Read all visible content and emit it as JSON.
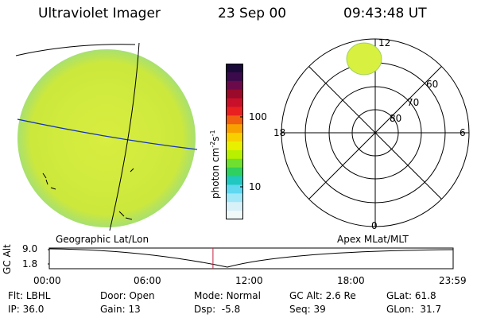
{
  "header": {
    "title": "Ultraviolet Imager",
    "date": "23 Sep 00",
    "time": "09:43:48 UT"
  },
  "colorbar": {
    "unit_label": "photon cm",
    "unit_exp1": "-2",
    "unit_s": "s",
    "unit_exp2": "-1",
    "ticks": [
      "100",
      "10"
    ],
    "colors": [
      "#1a0a3a",
      "#3a0a4a",
      "#6a0a4a",
      "#9a0a2a",
      "#c8102a",
      "#e82020",
      "#f06010",
      "#f8a000",
      "#f8d000",
      "#e8f000",
      "#b8f000",
      "#70e030",
      "#30d060",
      "#20c8c0",
      "#60d8f0",
      "#a0e8f8",
      "#d8f0f8",
      "#f0f8f8"
    ]
  },
  "polar": {
    "labels": [
      "12",
      "18",
      "6",
      "0",
      "60",
      "70",
      "80"
    ]
  },
  "timeline": {
    "left_axis_title": "GC Alt",
    "left_ticks": [
      "9.0",
      "1.8"
    ],
    "left_caption": "Geographic Lat/Lon",
    "right_caption": "Apex MLat/MLT",
    "time_ticks": [
      "00:00",
      "06:00",
      "12:00",
      "18:00",
      "23:59"
    ],
    "current_fraction": 0.4054
  },
  "footer": {
    "flt_label": "Flt:",
    "flt_value": "LBHL",
    "ip_label": "IP:",
    "ip_value": "36.0",
    "door_label": "Door:",
    "door_value": "Open",
    "gain_label": "Gain:",
    "gain_value": "13",
    "mode_label": "Mode:",
    "mode_value": "Normal",
    "dsp_label": "Dsp:",
    "dsp_value": "-5.8",
    "gcalt_label": "GC Alt:",
    "gcalt_value": "2.6 Re",
    "seq_label": "Seq:",
    "seq_value": "39",
    "glat_label": "GLat:",
    "glat_value": "61.8",
    "glon_label": "GLon:",
    "glon_value": "31.7"
  },
  "colors": {
    "earth_fill": "#d4ec3a",
    "earth_edge": "#c0e040",
    "grid_blue": "#1030c0",
    "oval": "#d8f040",
    "marker": "#c02040"
  }
}
